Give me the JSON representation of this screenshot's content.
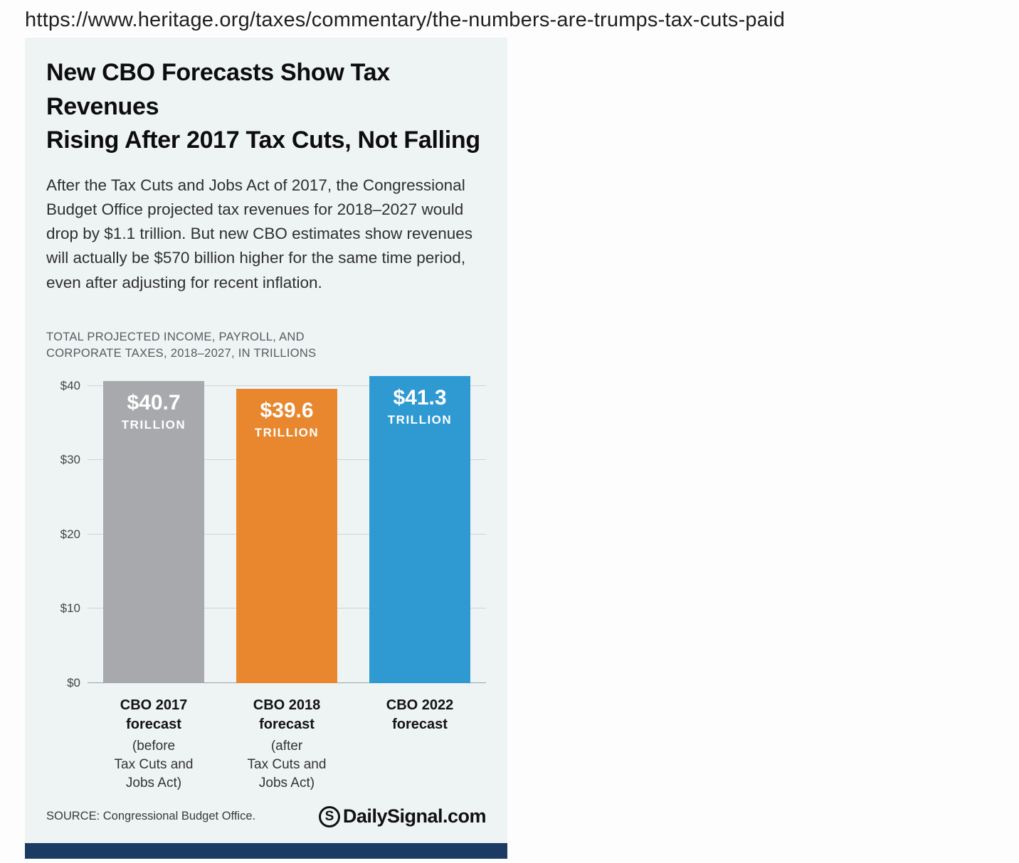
{
  "page": {
    "url": "https://www.heritage.org/taxes/commentary/the-numbers-are-trumps-tax-cuts-paid"
  },
  "infographic": {
    "title": "New CBO Forecasts Show Tax Revenues\nRising After 2017 Tax Cuts, Not Falling",
    "subtitle": "After the Tax Cuts and Jobs Act of 2017, the Congressional Budget Office projected tax revenues for 2018–2027 would drop by $1.1 trillion. But new CBO estimates show revenues will actually be $570 billion higher for the same time period, even after adjusting for recent inflation.",
    "source": "SOURCE: Congressional Budget Office.",
    "logo": {
      "mark": "S",
      "text": "DailySignal.com"
    },
    "footer_color": "#1c3b63",
    "card_background": "#eef3f4"
  },
  "chart_data": {
    "type": "bar",
    "title": "TOTAL PROJECTED INCOME, PAYROLL, AND\nCORPORATE TAXES, 2018–2027, IN TRILLIONS",
    "categories": [
      "CBO 2017\nforecast",
      "CBO 2018\nforecast",
      "CBO 2022\nforecast"
    ],
    "category_notes": [
      "(before\nTax Cuts and\nJobs Act)",
      "(after\nTax Cuts and\nJobs Act)",
      ""
    ],
    "values": [
      40.7,
      39.6,
      41.3
    ],
    "value_labels": [
      "$40.7",
      "$39.6",
      "$41.3"
    ],
    "unit_label": "TRILLION",
    "bar_colors": [
      "#a7a9ac",
      "#e8872e",
      "#2f9ad2"
    ],
    "yticks": [
      "$40",
      "$30",
      "$20",
      "$10",
      "$0"
    ],
    "ylim": [
      0,
      40
    ],
    "grid": true,
    "legend": "none"
  }
}
